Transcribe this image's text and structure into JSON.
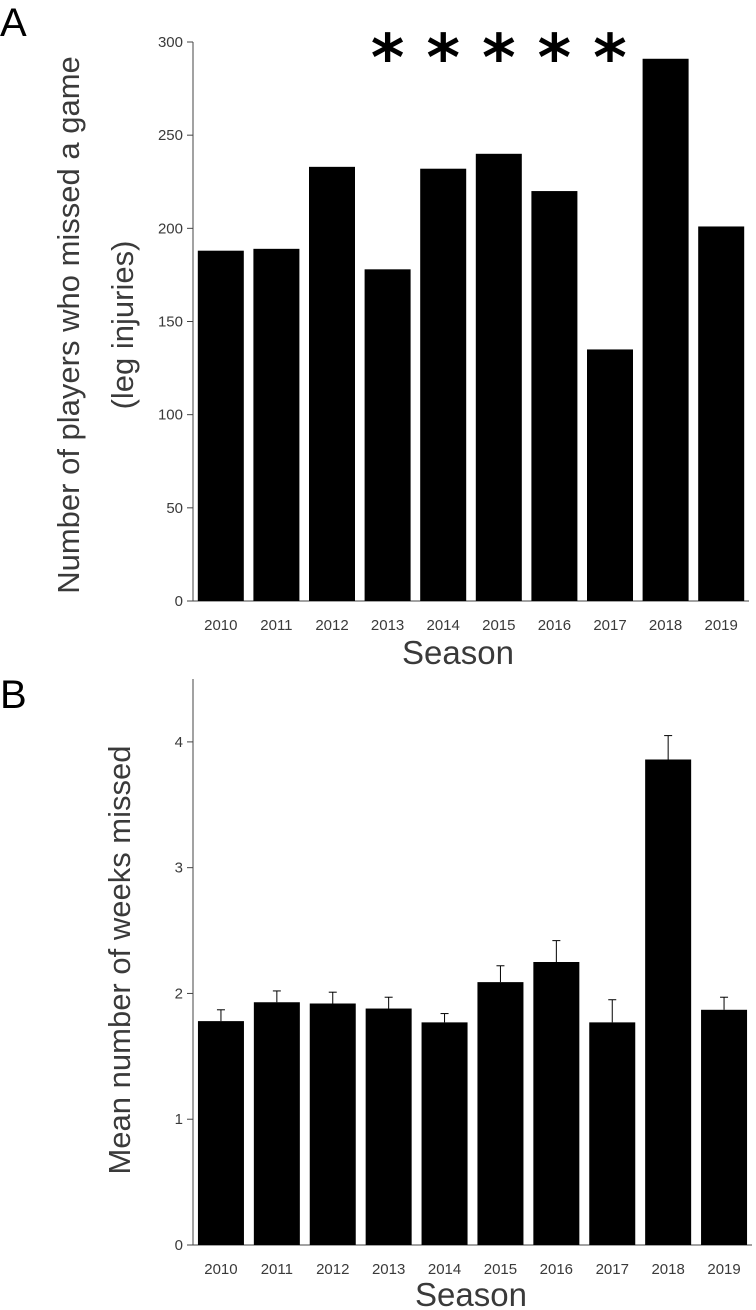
{
  "chart_data": [
    {
      "panel_label": "A",
      "type": "bar",
      "categories": [
        "2010",
        "2011",
        "2012",
        "2013",
        "2014",
        "2015",
        "2016",
        "2017",
        "2018",
        "2019"
      ],
      "values": [
        188,
        189,
        233,
        178,
        232,
        240,
        220,
        135,
        291,
        201
      ],
      "ylim": [
        0,
        300
      ],
      "yticks": [
        "0",
        "50",
        "100",
        "150",
        "200",
        "250",
        "300"
      ],
      "ylabel_lines": [
        "Number of players who missed a game",
        "(leg injuries)"
      ],
      "xlabel": "Season",
      "significance_markers": [
        {
          "category": "2013",
          "symbol": "*"
        },
        {
          "category": "2014",
          "symbol": "*"
        },
        {
          "category": "2015",
          "symbol": "*"
        },
        {
          "category": "2016",
          "symbol": "*"
        },
        {
          "category": "2017",
          "symbol": "*"
        }
      ],
      "bar_color": "#000000",
      "grid": false
    },
    {
      "panel_label": "B",
      "type": "bar",
      "categories": [
        "2010",
        "2011",
        "2012",
        "2013",
        "2014",
        "2015",
        "2016",
        "2017",
        "2018",
        "2019"
      ],
      "values": [
        1.78,
        1.93,
        1.92,
        1.88,
        1.77,
        2.09,
        2.25,
        1.77,
        3.86,
        1.87
      ],
      "errors": [
        0.09,
        0.09,
        0.09,
        0.09,
        0.07,
        0.13,
        0.17,
        0.18,
        0.19,
        0.1
      ],
      "ylim": [
        0,
        4.5
      ],
      "yticks": [
        "0",
        "1",
        "2",
        "3",
        "4"
      ],
      "ylabel_lines": [
        "Mean number of weeks missed"
      ],
      "xlabel": "Season",
      "bar_color": "#000000",
      "grid": false
    }
  ]
}
